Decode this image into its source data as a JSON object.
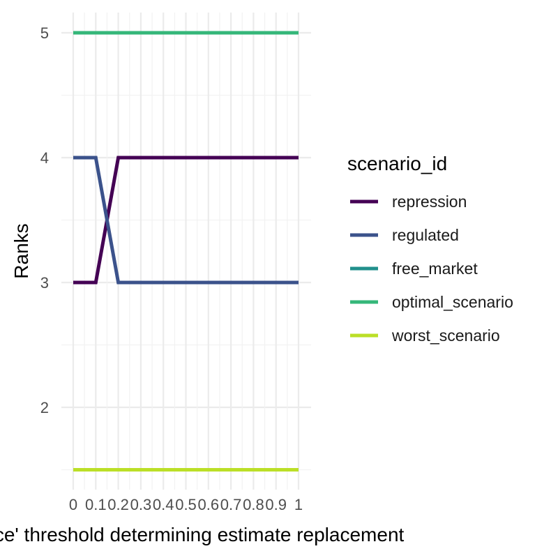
{
  "chart_data": {
    "type": "line",
    "xlabel": "ence' threshold determining estimate replacement",
    "ylabel": "Ranks",
    "x": [
      0,
      0.1,
      0.2,
      0.3,
      0.4,
      0.5,
      0.6,
      0.7,
      0.8,
      0.9,
      1
    ],
    "x_tick_labels": [
      "0",
      "0.1",
      "0.2",
      "0.3",
      "0.4",
      "0.5",
      "0.6",
      "0.7",
      "0.8",
      "0.9",
      "1"
    ],
    "y_ticks": [
      2,
      3,
      4,
      5
    ],
    "y_tick_labels": [
      "2",
      "3",
      "4",
      "5"
    ],
    "xlim": [
      0,
      1
    ],
    "ylim": [
      1.5,
      5
    ],
    "grid": true,
    "legend": {
      "title": "scenario_id",
      "placement": "right"
    },
    "series": [
      {
        "name": "repression",
        "color": "#440154",
        "values": [
          3,
          3,
          4,
          4,
          4,
          4,
          4,
          4,
          4,
          4,
          4
        ]
      },
      {
        "name": "regulated",
        "color": "#3B528B",
        "values": [
          4,
          4,
          3,
          3,
          3,
          3,
          3,
          3,
          3,
          3,
          3
        ]
      },
      {
        "name": "free_market",
        "color": "#21908C",
        "values": [
          5,
          5,
          5,
          5,
          5,
          5,
          5,
          5,
          5,
          5,
          5
        ]
      },
      {
        "name": "optimal_scenario",
        "color": "#35B779",
        "values": [
          5,
          5,
          5,
          5,
          5,
          5,
          5,
          5,
          5,
          5,
          5
        ]
      },
      {
        "name": "worst_scenario",
        "color": "#BBDF27",
        "values": [
          1.5,
          1.5,
          1.5,
          1.5,
          1.5,
          1.5,
          1.5,
          1.5,
          1.5,
          1.5,
          1.5
        ]
      }
    ]
  }
}
